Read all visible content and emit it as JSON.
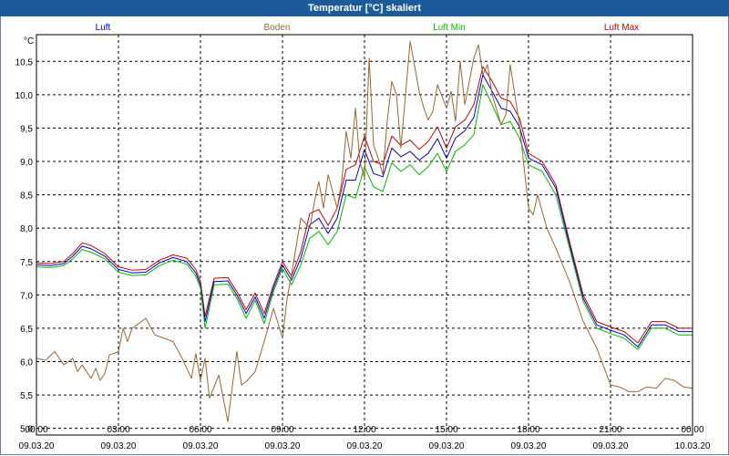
{
  "window": {
    "title": "Temperatur [°C] skaliert"
  },
  "chart_data": {
    "type": "line",
    "title": "Temperatur [°C] skaliert",
    "ylabel": "°C",
    "xlabel": "",
    "ylim": [
      4.9,
      10.9
    ],
    "xlim": [
      0,
      24
    ],
    "grid": true,
    "y_ticks": [
      "5,0",
      "5,5",
      "6,0",
      "6,5",
      "7,0",
      "7,5",
      "8,0",
      "8,5",
      "9,0",
      "9,5",
      "10,0",
      "10,5"
    ],
    "y_tick_values": [
      5.0,
      5.5,
      6.0,
      6.5,
      7.0,
      7.5,
      8.0,
      8.5,
      9.0,
      9.5,
      10.0,
      10.5
    ],
    "x_ticks": [
      {
        "h": 0,
        "time": "00:00",
        "date": "09.03.20"
      },
      {
        "h": 3,
        "time": "03:00",
        "date": "09.03.20"
      },
      {
        "h": 6,
        "time": "06:00",
        "date": "09.03.20"
      },
      {
        "h": 9,
        "time": "09:00",
        "date": "09.03.20"
      },
      {
        "h": 12,
        "time": "12:00",
        "date": "09.03.20"
      },
      {
        "h": 15,
        "time": "15:00",
        "date": "09.03.20"
      },
      {
        "h": 18,
        "time": "18:00",
        "date": "09.03.20"
      },
      {
        "h": 21,
        "time": "21:00",
        "date": "09.03.20"
      },
      {
        "h": 24,
        "time": "00:00",
        "date": "10.03.20"
      }
    ],
    "series": [
      {
        "name": "Luft Max",
        "color": "#cc0000",
        "x": [
          0,
          0.5,
          1,
          1.33,
          1.67,
          2,
          2.5,
          3,
          3.5,
          4,
          4.5,
          5,
          5.5,
          5.83,
          6,
          6.17,
          6.5,
          7,
          7.33,
          7.67,
          8,
          8.33,
          8.67,
          9,
          9.33,
          9.67,
          10,
          10.33,
          10.67,
          11,
          11.33,
          11.67,
          12,
          12.33,
          12.67,
          13,
          13.33,
          13.67,
          14,
          14.33,
          14.67,
          15,
          15.33,
          15.67,
          16,
          16.33,
          16.67,
          17,
          17.33,
          17.67,
          18,
          18.5,
          19,
          19.5,
          20,
          20.5,
          21,
          21.5,
          22,
          22.5,
          23,
          23.5,
          24
        ],
        "values": [
          7.48,
          7.47,
          7.5,
          7.62,
          7.78,
          7.74,
          7.62,
          7.42,
          7.37,
          7.38,
          7.52,
          7.6,
          7.55,
          7.38,
          7.2,
          6.68,
          7.25,
          7.26,
          7.05,
          6.78,
          7.03,
          6.72,
          7.15,
          7.5,
          7.28,
          7.65,
          8.22,
          8.28,
          8.04,
          8.3,
          8.88,
          8.95,
          9.38,
          9.0,
          8.95,
          9.38,
          9.24,
          9.32,
          9.18,
          9.3,
          9.52,
          9.2,
          9.52,
          9.62,
          9.85,
          10.42,
          10.2,
          9.95,
          9.9,
          9.65,
          9.12,
          9.0,
          8.65,
          7.8,
          7.0,
          6.6,
          6.52,
          6.45,
          6.28,
          6.6,
          6.6,
          6.5,
          6.5
        ]
      },
      {
        "name": "Luft",
        "color": "#0000cc",
        "x": [
          0,
          0.5,
          1,
          1.33,
          1.67,
          2,
          2.5,
          3,
          3.5,
          4,
          4.5,
          5,
          5.5,
          5.83,
          6,
          6.17,
          6.5,
          7,
          7.33,
          7.67,
          8,
          8.33,
          8.67,
          9,
          9.33,
          9.67,
          10,
          10.33,
          10.67,
          11,
          11.33,
          11.67,
          12,
          12.33,
          12.67,
          13,
          13.33,
          13.67,
          14,
          14.33,
          14.67,
          15,
          15.33,
          15.67,
          16,
          16.33,
          16.67,
          17,
          17.33,
          17.67,
          18,
          18.5,
          19,
          19.5,
          20,
          20.5,
          21,
          21.5,
          22,
          22.5,
          23,
          23.5,
          24
        ],
        "values": [
          7.45,
          7.44,
          7.47,
          7.58,
          7.73,
          7.69,
          7.58,
          7.38,
          7.33,
          7.34,
          7.48,
          7.56,
          7.5,
          7.33,
          7.15,
          6.6,
          7.2,
          7.21,
          7.0,
          6.72,
          6.97,
          6.65,
          7.1,
          7.45,
          7.22,
          7.55,
          8.05,
          8.15,
          7.92,
          8.15,
          8.72,
          8.72,
          9.18,
          8.82,
          8.77,
          9.2,
          9.07,
          9.15,
          9.02,
          9.12,
          9.34,
          9.05,
          9.35,
          9.46,
          9.66,
          10.3,
          10.05,
          9.8,
          9.75,
          9.52,
          9.05,
          8.95,
          8.6,
          7.75,
          6.95,
          6.55,
          6.47,
          6.4,
          6.22,
          6.55,
          6.55,
          6.45,
          6.45
        ]
      },
      {
        "name": "Luft Min",
        "color": "#00bb00",
        "x": [
          0,
          0.5,
          1,
          1.33,
          1.67,
          2,
          2.5,
          3,
          3.5,
          4,
          4.5,
          5,
          5.5,
          5.83,
          6,
          6.17,
          6.5,
          7,
          7.33,
          7.67,
          8,
          8.33,
          8.67,
          9,
          9.33,
          9.67,
          10,
          10.33,
          10.67,
          11,
          11.33,
          11.67,
          12,
          12.33,
          12.67,
          13,
          13.33,
          13.67,
          14,
          14.33,
          14.67,
          15,
          15.33,
          15.67,
          16,
          16.33,
          16.67,
          17,
          17.33,
          17.67,
          18,
          18.5,
          19,
          19.5,
          20,
          20.5,
          21,
          21.5,
          22,
          22.5,
          23,
          23.5,
          24
        ],
        "values": [
          7.42,
          7.41,
          7.44,
          7.54,
          7.68,
          7.64,
          7.54,
          7.34,
          7.29,
          7.3,
          7.44,
          7.52,
          7.46,
          7.28,
          7.1,
          6.5,
          7.15,
          7.16,
          6.95,
          6.65,
          6.92,
          6.57,
          7.05,
          7.4,
          7.15,
          7.45,
          7.85,
          7.95,
          7.75,
          7.95,
          8.5,
          8.45,
          8.92,
          8.62,
          8.55,
          8.98,
          8.85,
          8.95,
          8.8,
          8.92,
          9.12,
          8.85,
          9.15,
          9.25,
          9.4,
          10.15,
          9.85,
          9.55,
          9.6,
          9.35,
          8.95,
          8.85,
          8.5,
          7.7,
          6.9,
          6.5,
          6.42,
          6.35,
          6.18,
          6.5,
          6.5,
          6.4,
          6.4
        ]
      },
      {
        "name": "Boden",
        "color": "#996633",
        "x": [
          0,
          0.33,
          0.67,
          1,
          1.33,
          1.5,
          1.67,
          2,
          2.17,
          2.33,
          2.5,
          2.67,
          3,
          3.17,
          3.33,
          3.5,
          3.67,
          4,
          4.33,
          4.67,
          5,
          5.33,
          5.67,
          5.83,
          6,
          6.17,
          6.33,
          6.67,
          7,
          7.33,
          7.5,
          7.67,
          8,
          8.33,
          8.67,
          9,
          9.17,
          9.33,
          9.67,
          10,
          10.17,
          10.33,
          10.5,
          10.67,
          11,
          11.17,
          11.33,
          11.5,
          11.67,
          11.83,
          12,
          12.17,
          12.33,
          12.5,
          12.67,
          12.83,
          13,
          13.17,
          13.33,
          13.67,
          14,
          14.17,
          14.33,
          14.5,
          14.67,
          15,
          15.17,
          15.33,
          15.5,
          15.67,
          16,
          16.17,
          16.33,
          16.5,
          16.67,
          17,
          17.17,
          17.33,
          17.67,
          18,
          18.17,
          18.33,
          18.67,
          19,
          19.5,
          20,
          20.5,
          21,
          21.33,
          21.67,
          22,
          22.33,
          22.67,
          23,
          23.33,
          23.67,
          24
        ],
        "values": [
          6.05,
          6.02,
          6.15,
          5.95,
          6.05,
          5.85,
          5.95,
          5.75,
          5.9,
          5.72,
          5.82,
          6.1,
          6.15,
          6.5,
          6.3,
          6.5,
          6.55,
          6.65,
          6.4,
          6.35,
          6.3,
          6.05,
          5.75,
          6.12,
          5.72,
          6.05,
          5.45,
          5.8,
          5.1,
          6.15,
          5.65,
          5.7,
          5.85,
          6.3,
          6.8,
          6.35,
          6.95,
          7.3,
          8.15,
          8.0,
          8.4,
          8.7,
          8.3,
          8.8,
          8.3,
          8.7,
          9.45,
          9.05,
          9.8,
          9.0,
          8.75,
          10.55,
          9.25,
          9.05,
          8.8,
          9.6,
          10.2,
          10.0,
          9.2,
          10.8,
          10.05,
          9.8,
          9.62,
          9.75,
          10.15,
          9.8,
          10.05,
          9.6,
          10.5,
          9.85,
          10.55,
          10.75,
          10.3,
          10.45,
          10.0,
          9.55,
          9.7,
          10.45,
          9.55,
          8.3,
          8.2,
          8.5,
          8.0,
          7.7,
          7.2,
          6.6,
          6.2,
          5.65,
          5.62,
          5.55,
          5.55,
          5.62,
          5.6,
          5.75,
          5.72,
          5.62,
          5.6
        ]
      }
    ],
    "legend": [
      {
        "name": "Luft",
        "color": "#0000cc"
      },
      {
        "name": "Boden",
        "color": "#996633"
      },
      {
        "name": "Luft Min",
        "color": "#00bb00"
      },
      {
        "name": "Luft Max",
        "color": "#cc0000"
      }
    ]
  }
}
